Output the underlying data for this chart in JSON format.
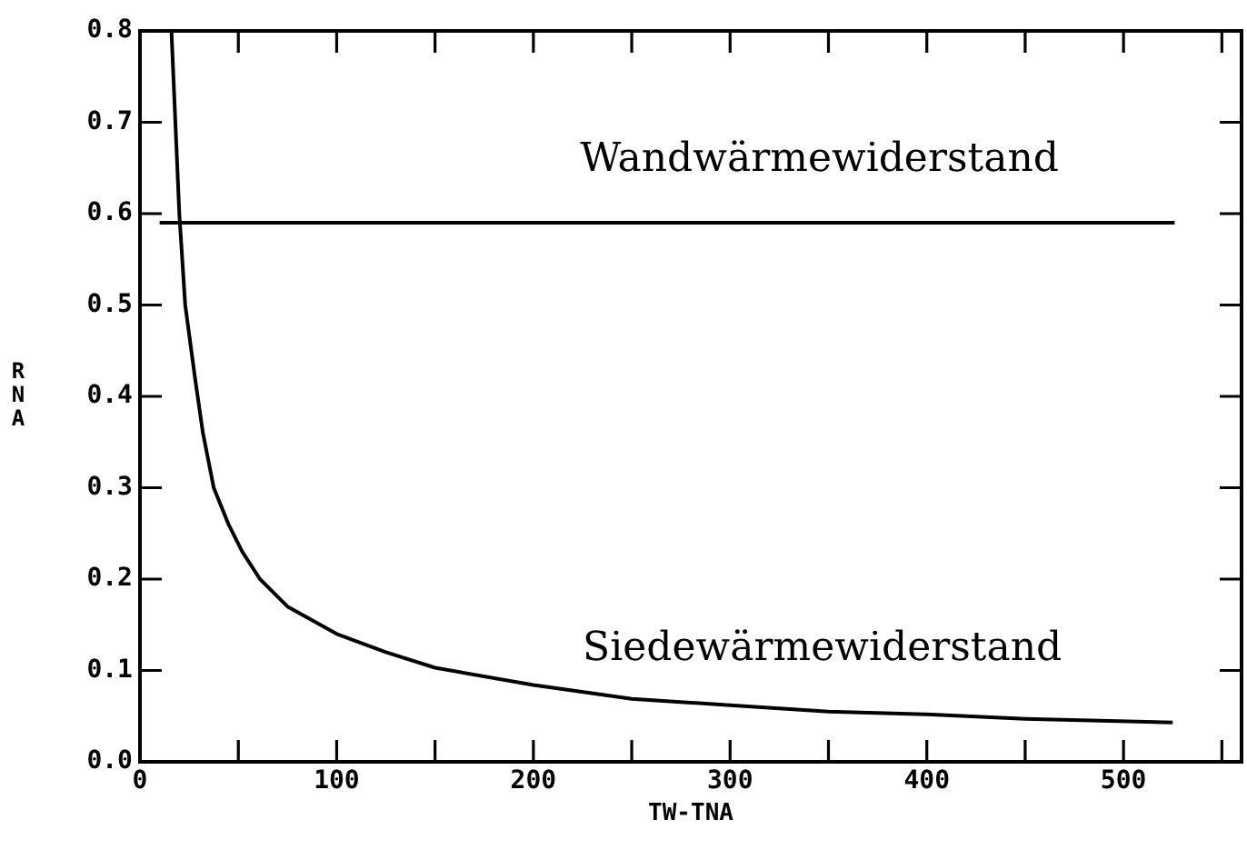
{
  "chart_data": {
    "type": "line",
    "xlabel": "TW-TNA",
    "ylabel": "RNA",
    "xlim": [
      0,
      560
    ],
    "ylim": [
      0,
      0.8
    ],
    "xticks": [
      0,
      {
        "value": 50,
        "label": null
      },
      100,
      {
        "value": 150,
        "label": null
      },
      200,
      {
        "value": 250,
        "label": null
      },
      300,
      {
        "value": 350,
        "label": null
      },
      400,
      {
        "value": 450,
        "label": null
      },
      500,
      {
        "value": 550,
        "label": null
      }
    ],
    "yticks": [
      {
        "value": 0,
        "label": "0.0"
      },
      0.1,
      0.2,
      0.3,
      0.4,
      0.5,
      0.6,
      0.7,
      0.8
    ],
    "grid": false,
    "legend": false,
    "marker": "none",
    "line_style": "solid",
    "series": [
      {
        "name": "Wandwärmewiderstand",
        "color": "#000000",
        "x": [
          10,
          526
        ],
        "values": [
          0.59,
          0.59
        ]
      },
      {
        "name": "Siedewärmewiderstand",
        "color": "#000000",
        "x": [
          16,
          18,
          20,
          23,
          28,
          32,
          37.5,
          45,
          52,
          61,
          75,
          100,
          125,
          150,
          200,
          250,
          300,
          350,
          400,
          450,
          525
        ],
        "values": [
          0.8,
          0.7,
          0.6,
          0.5,
          0.42,
          0.36,
          0.3,
          0.26,
          0.23,
          0.2,
          0.17,
          0.14,
          0.12,
          0.103,
          0.084,
          0.069,
          0.062,
          0.055,
          0.052,
          0.047,
          0.043
        ]
      }
    ]
  }
}
